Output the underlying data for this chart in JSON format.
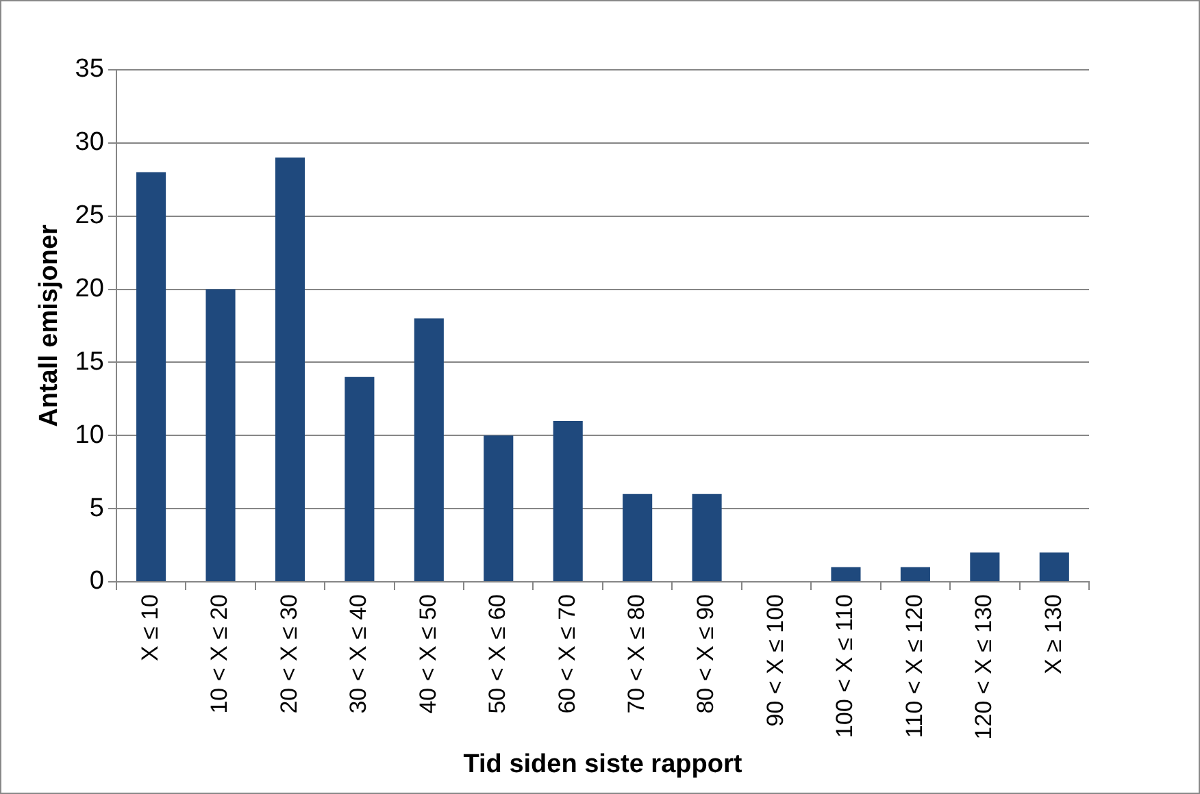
{
  "chart_data": {
    "type": "bar",
    "xlabel": "Tid siden siste rapport",
    "ylabel": "Antall emisjoner",
    "categories": [
      "X ≤ 10",
      "10 < X ≤ 20",
      "20 < X ≤ 30",
      "30 < X ≤ 40",
      "40 < X ≤ 50",
      "50 < X ≤ 60",
      "60 < X ≤ 70",
      "70 < X ≤ 80",
      "80 < X ≤ 90",
      "90 < X ≤ 100",
      "100 < X ≤ 110",
      "110 < X ≤ 120",
      "120 < X ≤ 130",
      "X ≥ 130"
    ],
    "values": [
      28,
      20,
      29,
      14,
      18,
      10,
      11,
      6,
      6,
      0,
      1,
      1,
      2,
      2
    ],
    "color": "#1f497d",
    "ylim": [
      0,
      35
    ],
    "yticks": [
      0,
      5,
      10,
      15,
      20,
      25,
      30,
      35
    ],
    "grid": "y",
    "legend": false
  }
}
